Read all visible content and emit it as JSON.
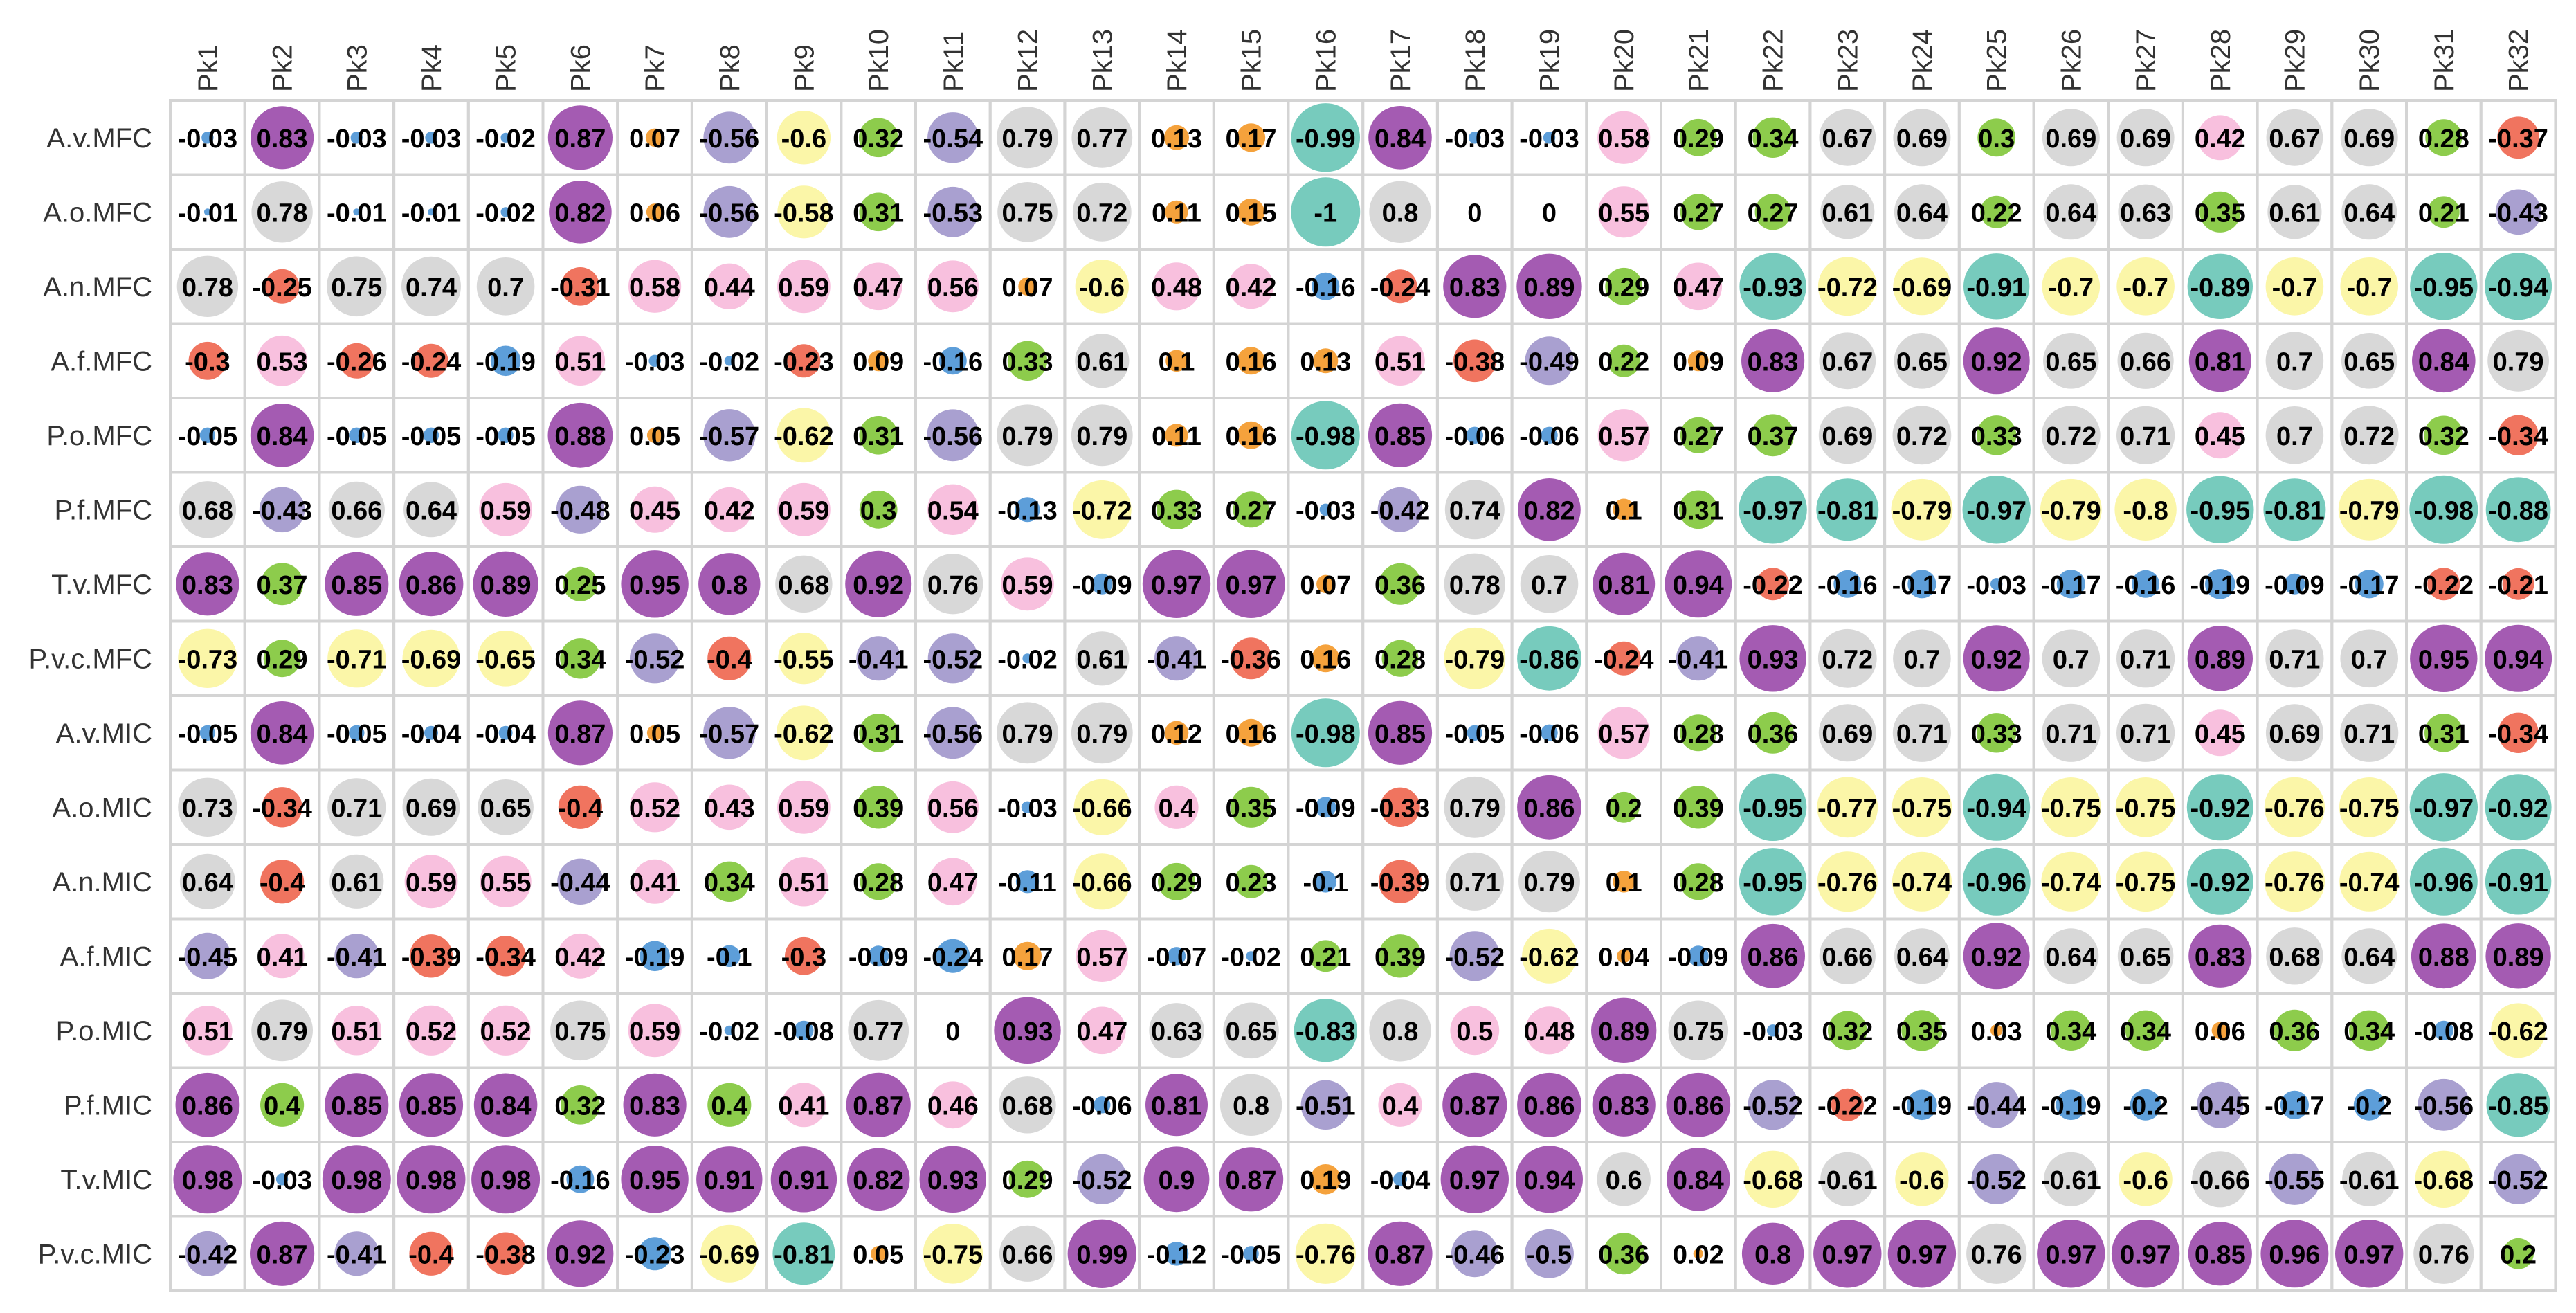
{
  "chart_data": {
    "type": "heatmap",
    "title": "",
    "xlabel": "",
    "ylabel": "",
    "columns": [
      "Pk1",
      "Pk2",
      "Pk3",
      "Pk4",
      "Pk5",
      "Pk6",
      "Pk7",
      "Pk8",
      "Pk9",
      "Pk10",
      "Pk11",
      "Pk12",
      "Pk13",
      "Pk14",
      "Pk15",
      "Pk16",
      "Pk17",
      "Pk18",
      "Pk19",
      "Pk20",
      "Pk21",
      "Pk22",
      "Pk23",
      "Pk24",
      "Pk25",
      "Pk26",
      "Pk27",
      "Pk28",
      "Pk29",
      "Pk30",
      "Pk31",
      "Pk32"
    ],
    "rows": [
      "A.v.MFC",
      "A.o.MFC",
      "A.n.MFC",
      "A.f.MFC",
      "P.o.MFC",
      "P.f.MFC",
      "T.v.MFC",
      "P.v.c.MFC",
      "A.v.MIC",
      "A.o.MIC",
      "A.n.MIC",
      "A.f.MIC",
      "P.o.MIC",
      "P.f.MIC",
      "T.v.MIC",
      "P.v.c.MIC"
    ],
    "values": [
      [
        "-0.03",
        "0.83",
        "-0.03",
        "-0.03",
        "-0.02",
        "0.87",
        "0.07",
        "-0.56",
        "-0.6",
        "0.32",
        "-0.54",
        "0.79",
        "0.77",
        "0.13",
        "0.17",
        "-0.99",
        "0.84",
        "-0.03",
        "-0.03",
        "0.58",
        "0.29",
        "0.34",
        "0.67",
        "0.69",
        "0.3",
        "0.69",
        "0.69",
        "0.42",
        "0.67",
        "0.69",
        "0.28",
        "-0.37"
      ],
      [
        "-0.01",
        "0.78",
        "-0.01",
        "-0.01",
        "-0.02",
        "0.82",
        "0.06",
        "-0.56",
        "-0.58",
        "0.31",
        "-0.53",
        "0.75",
        "0.72",
        "0.11",
        "0.15",
        "-1",
        "0.8",
        "0",
        "0",
        "0.55",
        "0.27",
        "0.27",
        "0.61",
        "0.64",
        "0.22",
        "0.64",
        "0.63",
        "0.35",
        "0.61",
        "0.64",
        "0.21",
        "-0.43"
      ],
      [
        "0.78",
        "-0.25",
        "0.75",
        "0.74",
        "0.7",
        "-0.31",
        "0.58",
        "0.44",
        "0.59",
        "0.47",
        "0.56",
        "0.07",
        "-0.6",
        "0.48",
        "0.42",
        "-0.16",
        "-0.24",
        "0.83",
        "0.89",
        "0.29",
        "0.47",
        "-0.93",
        "-0.72",
        "-0.69",
        "-0.91",
        "-0.7",
        "-0.7",
        "-0.89",
        "-0.7",
        "-0.7",
        "-0.95",
        "-0.94"
      ],
      [
        "-0.3",
        "0.53",
        "-0.26",
        "-0.24",
        "-0.19",
        "0.51",
        "-0.03",
        "-0.02",
        "-0.23",
        "0.09",
        "-0.16",
        "0.33",
        "0.61",
        "0.1",
        "0.16",
        "0.13",
        "0.51",
        "-0.38",
        "-0.49",
        "0.22",
        "0.09",
        "0.83",
        "0.67",
        "0.65",
        "0.92",
        "0.65",
        "0.66",
        "0.81",
        "0.7",
        "0.65",
        "0.84",
        "0.79"
      ],
      [
        "-0.05",
        "0.84",
        "-0.05",
        "-0.05",
        "-0.05",
        "0.88",
        "0.05",
        "-0.57",
        "-0.62",
        "0.31",
        "-0.56",
        "0.79",
        "0.79",
        "0.11",
        "0.16",
        "-0.98",
        "0.85",
        "-0.06",
        "-0.06",
        "0.57",
        "0.27",
        "0.37",
        "0.69",
        "0.72",
        "0.33",
        "0.72",
        "0.71",
        "0.45",
        "0.7",
        "0.72",
        "0.32",
        "-0.34"
      ],
      [
        "0.68",
        "-0.43",
        "0.66",
        "0.64",
        "0.59",
        "-0.48",
        "0.45",
        "0.42",
        "0.59",
        "0.3",
        "0.54",
        "-0.13",
        "-0.72",
        "0.33",
        "0.27",
        "-0.03",
        "-0.42",
        "0.74",
        "0.82",
        "0.1",
        "0.31",
        "-0.97",
        "-0.81",
        "-0.79",
        "-0.97",
        "-0.79",
        "-0.8",
        "-0.95",
        "-0.81",
        "-0.79",
        "-0.98",
        "-0.88"
      ],
      [
        "0.83",
        "0.37",
        "0.85",
        "0.86",
        "0.89",
        "0.25",
        "0.95",
        "0.8",
        "0.68",
        "0.92",
        "0.76",
        "0.59",
        "-0.09",
        "0.97",
        "0.97",
        "0.07",
        "0.36",
        "0.78",
        "0.7",
        "0.81",
        "0.94",
        "-0.22",
        "-0.16",
        "-0.17",
        "-0.03",
        "-0.17",
        "-0.16",
        "-0.19",
        "-0.09",
        "-0.17",
        "-0.22",
        "-0.21"
      ],
      [
        "-0.73",
        "0.29",
        "-0.71",
        "-0.69",
        "-0.65",
        "0.34",
        "-0.52",
        "-0.4",
        "-0.55",
        "-0.41",
        "-0.52",
        "-0.02",
        "0.61",
        "-0.41",
        "-0.36",
        "0.16",
        "0.28",
        "-0.79",
        "-0.86",
        "-0.24",
        "-0.41",
        "0.93",
        "0.72",
        "0.7",
        "0.92",
        "0.7",
        "0.71",
        "0.89",
        "0.71",
        "0.7",
        "0.95",
        "0.94"
      ],
      [
        "-0.05",
        "0.84",
        "-0.05",
        "-0.04",
        "-0.04",
        "0.87",
        "0.05",
        "-0.57",
        "-0.62",
        "0.31",
        "-0.56",
        "0.79",
        "0.79",
        "0.12",
        "0.16",
        "-0.98",
        "0.85",
        "-0.05",
        "-0.06",
        "0.57",
        "0.28",
        "0.36",
        "0.69",
        "0.71",
        "0.33",
        "0.71",
        "0.71",
        "0.45",
        "0.69",
        "0.71",
        "0.31",
        "-0.34"
      ],
      [
        "0.73",
        "-0.34",
        "0.71",
        "0.69",
        "0.65",
        "-0.4",
        "0.52",
        "0.43",
        "0.59",
        "0.39",
        "0.56",
        "-0.03",
        "-0.66",
        "0.4",
        "0.35",
        "-0.09",
        "-0.33",
        "0.79",
        "0.86",
        "0.2",
        "0.39",
        "-0.95",
        "-0.77",
        "-0.75",
        "-0.94",
        "-0.75",
        "-0.75",
        "-0.92",
        "-0.76",
        "-0.75",
        "-0.97",
        "-0.92"
      ],
      [
        "0.64",
        "-0.4",
        "0.61",
        "0.59",
        "0.55",
        "-0.44",
        "0.41",
        "0.34",
        "0.51",
        "0.28",
        "0.47",
        "-0.11",
        "-0.66",
        "0.29",
        "0.23",
        "-0.1",
        "-0.39",
        "0.71",
        "0.79",
        "0.1",
        "0.28",
        "-0.95",
        "-0.76",
        "-0.74",
        "-0.96",
        "-0.74",
        "-0.75",
        "-0.92",
        "-0.76",
        "-0.74",
        "-0.96",
        "-0.91"
      ],
      [
        "-0.45",
        "0.41",
        "-0.41",
        "-0.39",
        "-0.34",
        "0.42",
        "-0.19",
        "-0.1",
        "-0.3",
        "-0.09",
        "-0.24",
        "0.17",
        "0.57",
        "-0.07",
        "-0.02",
        "0.21",
        "0.39",
        "-0.52",
        "-0.62",
        "0.04",
        "-0.09",
        "0.86",
        "0.66",
        "0.64",
        "0.92",
        "0.64",
        "0.65",
        "0.83",
        "0.68",
        "0.64",
        "0.88",
        "0.89"
      ],
      [
        "0.51",
        "0.79",
        "0.51",
        "0.52",
        "0.52",
        "0.75",
        "0.59",
        "-0.02",
        "-0.08",
        "0.77",
        "0",
        "0.93",
        "0.47",
        "0.63",
        "0.65",
        "-0.83",
        "0.8",
        "0.5",
        "0.48",
        "0.89",
        "0.75",
        "-0.03",
        "0.32",
        "0.35",
        "0.03",
        "0.34",
        "0.34",
        "0.06",
        "0.36",
        "0.34",
        "-0.08",
        "-0.62"
      ],
      [
        "0.86",
        "0.4",
        "0.85",
        "0.85",
        "0.84",
        "0.32",
        "0.83",
        "0.4",
        "0.41",
        "0.87",
        "0.46",
        "0.68",
        "-0.06",
        "0.81",
        "0.8",
        "-0.51",
        "0.4",
        "0.87",
        "0.86",
        "0.83",
        "0.86",
        "-0.52",
        "-0.22",
        "-0.19",
        "-0.44",
        "-0.19",
        "-0.2",
        "-0.45",
        "-0.17",
        "-0.2",
        "-0.56",
        "-0.85"
      ],
      [
        "0.98",
        "-0.03",
        "0.98",
        "0.98",
        "0.98",
        "-0.16",
        "0.95",
        "0.91",
        "0.91",
        "0.82",
        "0.93",
        "0.29",
        "-0.52",
        "0.9",
        "0.87",
        "0.19",
        "-0.04",
        "0.97",
        "0.94",
        "0.6",
        "0.84",
        "-0.68",
        "-0.61",
        "-0.6",
        "-0.52",
        "-0.61",
        "-0.6",
        "-0.66",
        "-0.55",
        "-0.61",
        "-0.68",
        "-0.52"
      ],
      [
        "-0.42",
        "0.87",
        "-0.41",
        "-0.4",
        "-0.38",
        "0.92",
        "-0.23",
        "-0.69",
        "-0.81",
        "0.05",
        "-0.75",
        "0.66",
        "0.99",
        "-0.12",
        "-0.05",
        "-0.76",
        "0.87",
        "-0.46",
        "-0.5",
        "0.36",
        "0.02",
        "0.8",
        "0.97",
        "0.97",
        "0.76",
        "0.97",
        "0.97",
        "0.85",
        "0.96",
        "0.97",
        "0.76",
        "0.2"
      ]
    ],
    "color_classes": [
      [
        1,
        2,
        1,
        1,
        1,
        2,
        3,
        4,
        5,
        6,
        4,
        7,
        7,
        3,
        3,
        8,
        2,
        1,
        1,
        9,
        6,
        6,
        7,
        7,
        6,
        7,
        7,
        9,
        7,
        7,
        6,
        0
      ],
      [
        1,
        7,
        1,
        1,
        1,
        2,
        3,
        4,
        5,
        6,
        4,
        7,
        7,
        3,
        3,
        8,
        7,
        1,
        1,
        9,
        6,
        6,
        7,
        7,
        6,
        7,
        7,
        6,
        7,
        7,
        6,
        4
      ],
      [
        7,
        0,
        7,
        7,
        7,
        0,
        9,
        9,
        9,
        9,
        9,
        3,
        5,
        9,
        9,
        1,
        0,
        2,
        2,
        6,
        9,
        8,
        5,
        5,
        8,
        5,
        5,
        8,
        5,
        5,
        8,
        8
      ],
      [
        0,
        9,
        0,
        0,
        1,
        9,
        1,
        1,
        0,
        3,
        1,
        6,
        7,
        3,
        3,
        3,
        9,
        0,
        4,
        6,
        3,
        2,
        7,
        7,
        2,
        7,
        7,
        2,
        7,
        7,
        2,
        7
      ],
      [
        1,
        2,
        1,
        1,
        1,
        2,
        3,
        4,
        5,
        6,
        4,
        7,
        7,
        3,
        3,
        8,
        2,
        1,
        1,
        9,
        6,
        6,
        7,
        7,
        6,
        7,
        7,
        9,
        7,
        7,
        6,
        0
      ],
      [
        7,
        4,
        7,
        7,
        9,
        4,
        9,
        9,
        9,
        6,
        9,
        1,
        5,
        6,
        6,
        1,
        4,
        7,
        2,
        3,
        6,
        8,
        8,
        5,
        8,
        5,
        5,
        8,
        8,
        5,
        8,
        8
      ],
      [
        2,
        6,
        2,
        2,
        2,
        6,
        2,
        2,
        7,
        2,
        7,
        9,
        1,
        2,
        2,
        3,
        6,
        7,
        7,
        2,
        2,
        0,
        1,
        1,
        1,
        1,
        1,
        1,
        1,
        1,
        0,
        0
      ],
      [
        5,
        6,
        5,
        5,
        5,
        6,
        4,
        0,
        5,
        4,
        4,
        1,
        7,
        4,
        0,
        3,
        6,
        5,
        8,
        0,
        4,
        2,
        7,
        7,
        2,
        7,
        7,
        2,
        7,
        7,
        2,
        2
      ],
      [
        1,
        2,
        1,
        1,
        1,
        2,
        3,
        4,
        5,
        6,
        4,
        7,
        7,
        3,
        3,
        8,
        2,
        1,
        1,
        9,
        6,
        6,
        7,
        7,
        6,
        7,
        7,
        9,
        7,
        7,
        6,
        0
      ],
      [
        7,
        0,
        7,
        7,
        7,
        0,
        9,
        9,
        9,
        6,
        9,
        1,
        5,
        9,
        6,
        1,
        0,
        7,
        2,
        6,
        6,
        8,
        5,
        5,
        8,
        5,
        5,
        8,
        5,
        5,
        8,
        8
      ],
      [
        7,
        0,
        7,
        9,
        9,
        4,
        9,
        6,
        9,
        6,
        9,
        1,
        5,
        6,
        6,
        1,
        0,
        7,
        7,
        3,
        6,
        8,
        5,
        5,
        8,
        5,
        5,
        8,
        5,
        5,
        8,
        8
      ],
      [
        4,
        9,
        4,
        0,
        0,
        9,
        1,
        1,
        0,
        1,
        1,
        3,
        9,
        1,
        1,
        6,
        6,
        4,
        5,
        3,
        1,
        2,
        7,
        7,
        2,
        7,
        7,
        2,
        7,
        7,
        2,
        2
      ],
      [
        9,
        7,
        9,
        9,
        9,
        7,
        9,
        1,
        1,
        7,
        3,
        2,
        9,
        7,
        7,
        8,
        7,
        9,
        9,
        2,
        7,
        1,
        6,
        6,
        3,
        6,
        6,
        3,
        6,
        6,
        1,
        5
      ],
      [
        2,
        6,
        2,
        2,
        2,
        6,
        2,
        6,
        9,
        2,
        9,
        7,
        1,
        2,
        7,
        4,
        9,
        2,
        2,
        2,
        2,
        4,
        0,
        1,
        4,
        1,
        1,
        4,
        1,
        1,
        4,
        8
      ],
      [
        2,
        1,
        2,
        2,
        2,
        1,
        2,
        2,
        2,
        2,
        2,
        6,
        4,
        2,
        2,
        3,
        1,
        2,
        2,
        7,
        2,
        5,
        7,
        5,
        4,
        7,
        5,
        7,
        4,
        7,
        5,
        4
      ],
      [
        4,
        2,
        4,
        0,
        0,
        2,
        1,
        5,
        8,
        3,
        5,
        7,
        2,
        1,
        1,
        5,
        2,
        4,
        4,
        6,
        3,
        2,
        2,
        2,
        7,
        2,
        2,
        2,
        2,
        2,
        7,
        6
      ]
    ],
    "palette": [
      "#f0745f",
      "#5d9ed9",
      "#a45bb2",
      "#f5a23c",
      "#a9a0d0",
      "#fbf6a8",
      "#8dcc4c",
      "#d8d8d8",
      "#77cbbd",
      "#f8c0de"
    ],
    "grid": true,
    "legend": "none"
  }
}
